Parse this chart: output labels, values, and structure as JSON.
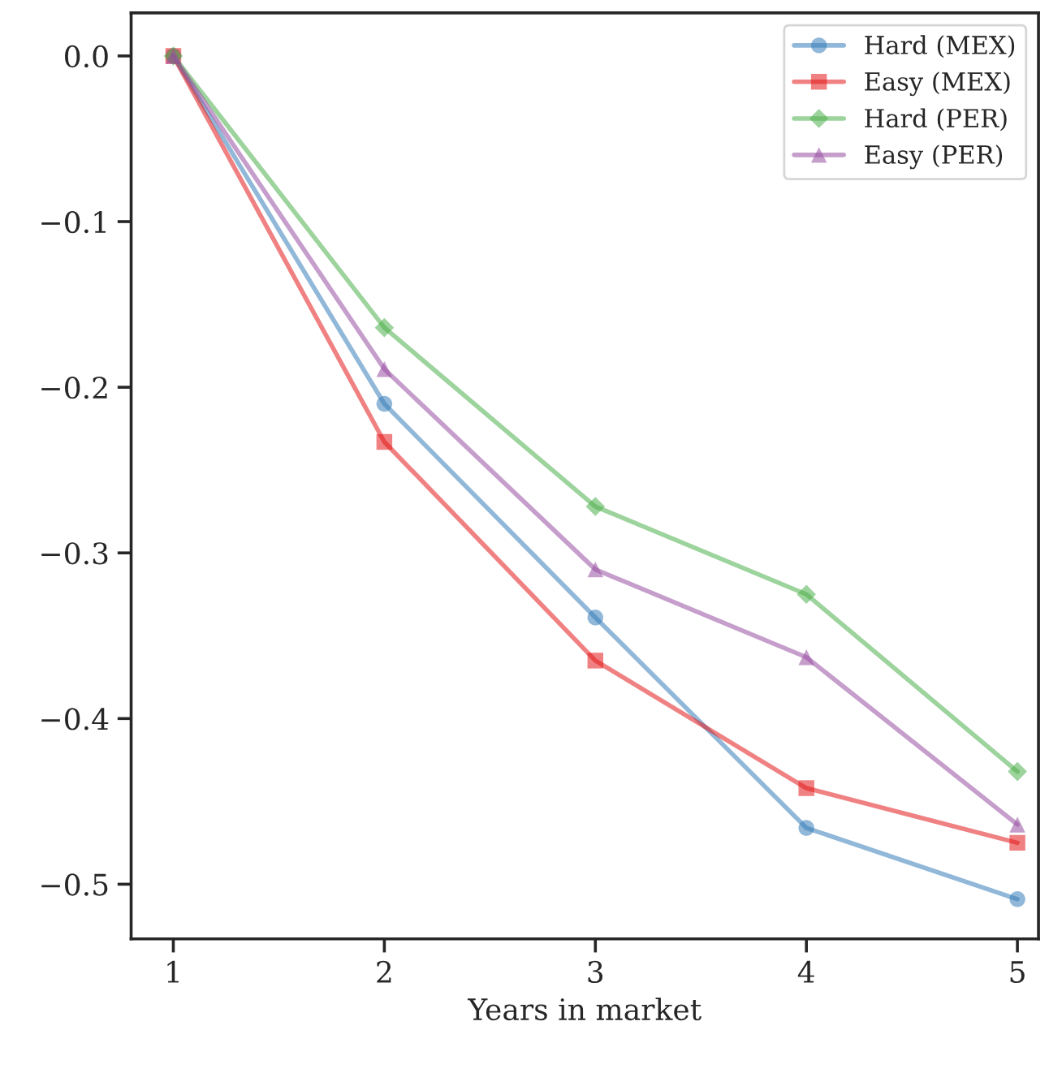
{
  "chart_data": {
    "type": "line",
    "xlabel": "Years in market",
    "x": [
      1,
      2,
      3,
      4,
      5
    ],
    "series": [
      {
        "name": "Hard (MEX)",
        "color": "#377eb8",
        "marker": "circle",
        "values": [
          0,
          -0.21,
          -0.339,
          -0.466,
          -0.509
        ]
      },
      {
        "name": "Easy (MEX)",
        "color": "#e41a1c",
        "marker": "square",
        "values": [
          0,
          -0.233,
          -0.365,
          -0.442,
          -0.475
        ]
      },
      {
        "name": "Hard (PER)",
        "color": "#4daf4a",
        "marker": "diamond",
        "values": [
          0,
          -0.164,
          -0.272,
          -0.325,
          -0.432
        ]
      },
      {
        "name": "Easy (PER)",
        "color": "#984ea3",
        "marker": "triangle",
        "values": [
          0,
          -0.189,
          -0.31,
          -0.363,
          -0.464
        ]
      }
    ],
    "xlim": [
      0.8,
      5.1
    ],
    "xticks": [
      1,
      2,
      3,
      4,
      5
    ],
    "ylim": [
      -0.533,
      0.026
    ],
    "yticks": [
      {
        "value": 0,
        "label": "0.0"
      },
      {
        "value": -0.1,
        "label": "−0.1"
      },
      {
        "value": -0.2,
        "label": "−0.2"
      },
      {
        "value": -0.3,
        "label": "−0.3"
      },
      {
        "value": -0.4,
        "label": "−0.4"
      },
      {
        "value": -0.5,
        "label": "−0.5"
      }
    ],
    "grid": false,
    "legend": "top right",
    "line_style": "solid"
  }
}
